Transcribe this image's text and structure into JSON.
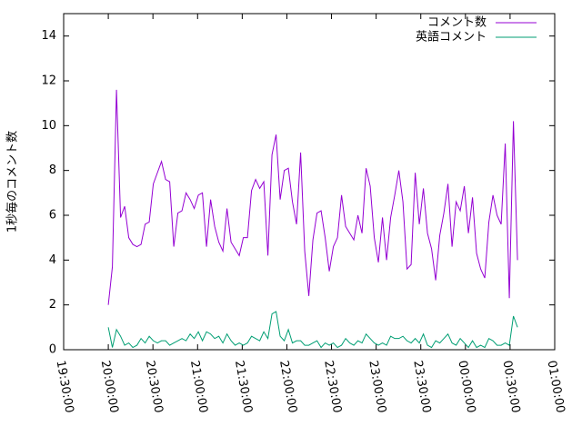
{
  "chart_data": {
    "type": "line",
    "ylabel": "1秒毎のコメント数",
    "xlim": [
      70200,
      90000
    ],
    "xticks": [
      {
        "value": 70200,
        "label": "19:30:00"
      },
      {
        "value": 72000,
        "label": "20:00:00"
      },
      {
        "value": 73800,
        "label": "20:30:00"
      },
      {
        "value": 75600,
        "label": "21:00:00"
      },
      {
        "value": 77400,
        "label": "21:30:00"
      },
      {
        "value": 79200,
        "label": "22:00:00"
      },
      {
        "value": 81000,
        "label": "22:30:00"
      },
      {
        "value": 82800,
        "label": "23:00:00"
      },
      {
        "value": 84600,
        "label": "23:30:00"
      },
      {
        "value": 86400,
        "label": "00:00:00"
      },
      {
        "value": 88200,
        "label": "00:30:00"
      },
      {
        "value": 90000,
        "label": "01:00:00"
      }
    ],
    "ylim": [
      0,
      15
    ],
    "yticks": [
      0,
      2,
      4,
      6,
      8,
      10,
      12,
      14
    ],
    "legend": "top-right",
    "x": [
      72000,
      72165,
      72330,
      72495,
      72660,
      72825,
      72990,
      73155,
      73320,
      73485,
      73650,
      73815,
      73980,
      74145,
      74310,
      74475,
      74640,
      74805,
      74970,
      75135,
      75300,
      75465,
      75630,
      75795,
      75960,
      76125,
      76290,
      76455,
      76620,
      76785,
      76950,
      77115,
      77280,
      77445,
      77610,
      77775,
      77940,
      78105,
      78270,
      78435,
      78600,
      78765,
      78930,
      79095,
      79260,
      79425,
      79590,
      79755,
      79920,
      80085,
      80250,
      80415,
      80580,
      80745,
      80910,
      81075,
      81240,
      81405,
      81570,
      81735,
      81900,
      82065,
      82230,
      82395,
      82560,
      82725,
      82890,
      83055,
      83220,
      83385,
      83550,
      83715,
      83880,
      84045,
      84210,
      84375,
      84540,
      84705,
      84870,
      85035,
      85200,
      85365,
      85530,
      85695,
      85860,
      86025,
      86190,
      86355,
      86520,
      86685,
      86850,
      87015,
      87180,
      87345,
      87510,
      87675,
      87840,
      88005,
      88170,
      88335,
      88500
    ],
    "series": [
      {
        "name": "コメント数",
        "color": "#9400d3",
        "values": [
          2.0,
          3.7,
          11.6,
          5.9,
          6.4,
          5.0,
          4.7,
          4.6,
          4.7,
          5.6,
          5.7,
          7.4,
          7.9,
          8.4,
          7.6,
          7.5,
          4.6,
          6.1,
          6.2,
          7.0,
          6.7,
          6.3,
          6.9,
          7.0,
          4.6,
          6.7,
          5.5,
          4.8,
          4.4,
          6.3,
          4.8,
          4.5,
          4.2,
          5.0,
          5.0,
          7.1,
          7.6,
          7.2,
          7.5,
          4.2,
          8.7,
          9.6,
          6.7,
          8.0,
          8.1,
          6.6,
          5.6,
          8.8,
          4.4,
          2.4,
          4.9,
          6.1,
          6.2,
          5.0,
          3.5,
          4.6,
          5.0,
          6.9,
          5.5,
          5.2,
          4.9,
          6.0,
          5.2,
          8.1,
          7.3,
          5.0,
          3.9,
          5.9,
          4.0,
          5.9,
          6.9,
          8.0,
          6.6,
          3.6,
          3.8,
          7.9,
          5.6,
          7.2,
          5.2,
          4.5,
          3.1,
          5.1,
          6.1,
          7.4,
          4.6,
          6.6,
          6.2,
          7.3,
          5.2,
          6.8,
          4.3,
          3.6,
          3.2,
          5.7,
          6.9,
          6.0,
          5.6,
          9.2,
          2.3,
          10.2,
          4.0
        ]
      },
      {
        "name": "英語コメント",
        "color": "#009e73",
        "values": [
          1.0,
          0.1,
          0.9,
          0.6,
          0.2,
          0.3,
          0.1,
          0.2,
          0.5,
          0.3,
          0.6,
          0.4,
          0.3,
          0.4,
          0.4,
          0.2,
          0.3,
          0.4,
          0.5,
          0.4,
          0.7,
          0.5,
          0.8,
          0.4,
          0.8,
          0.7,
          0.5,
          0.6,
          0.3,
          0.7,
          0.4,
          0.2,
          0.3,
          0.2,
          0.3,
          0.6,
          0.5,
          0.4,
          0.8,
          0.5,
          1.6,
          1.7,
          0.6,
          0.4,
          0.9,
          0.3,
          0.4,
          0.4,
          0.2,
          0.2,
          0.3,
          0.4,
          0.1,
          0.3,
          0.2,
          0.3,
          0.1,
          0.2,
          0.5,
          0.3,
          0.2,
          0.4,
          0.3,
          0.7,
          0.5,
          0.3,
          0.2,
          0.3,
          0.2,
          0.6,
          0.5,
          0.5,
          0.6,
          0.4,
          0.3,
          0.5,
          0.3,
          0.7,
          0.2,
          0.1,
          0.4,
          0.3,
          0.5,
          0.7,
          0.3,
          0.2,
          0.5,
          0.3,
          0.1,
          0.4,
          0.1,
          0.2,
          0.1,
          0.5,
          0.4,
          0.2,
          0.2,
          0.3,
          0.2,
          1.5,
          1.0
        ]
      }
    ]
  }
}
